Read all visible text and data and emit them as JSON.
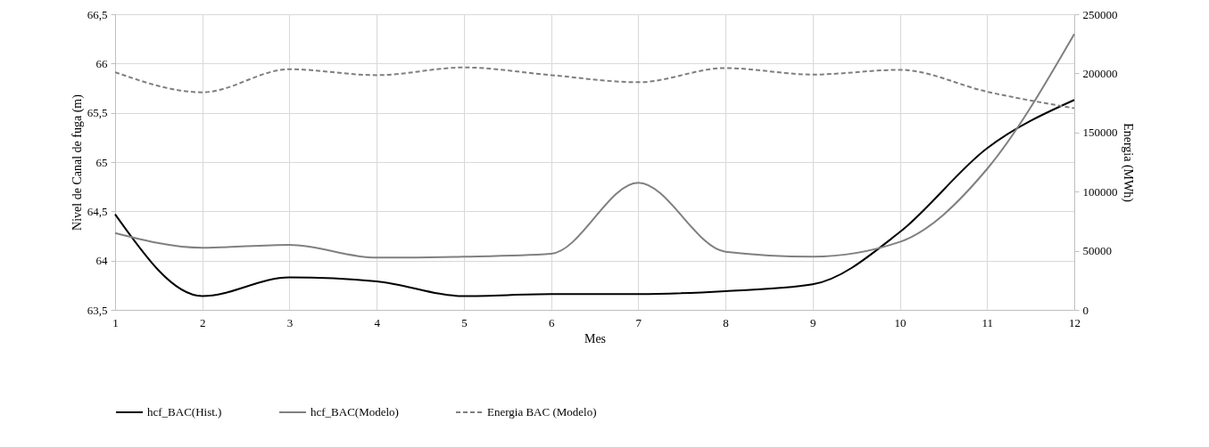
{
  "chart_data": {
    "type": "line",
    "xlabel": "Mes",
    "ylabel": "Nivel de Canal de fuga (m)",
    "y2label": "Energia (MWh)",
    "x": [
      1,
      2,
      3,
      4,
      5,
      6,
      7,
      8,
      9,
      10,
      11,
      12
    ],
    "xlim": [
      1,
      12
    ],
    "xticks": [
      1,
      2,
      3,
      4,
      5,
      6,
      7,
      8,
      9,
      10,
      11,
      12
    ],
    "ylim": [
      63.5,
      66.5
    ],
    "yticks": [
      {
        "value": 63.5,
        "label": "63,5"
      },
      64,
      {
        "value": 64.5,
        "label": "64,5"
      },
      65,
      {
        "value": 65.5,
        "label": "65,5"
      },
      66,
      {
        "value": 66.5,
        "label": "66,5"
      }
    ],
    "y2lim": [
      0,
      250000
    ],
    "y2ticks": [
      0,
      50000,
      100000,
      150000,
      200000,
      250000
    ],
    "grid": true,
    "legend": "bottom",
    "marker": "none",
    "series": [
      {
        "name": "hcf_BAC(Hist.)",
        "color": "#000000",
        "line_style": "solid",
        "values": [
          64.47,
          63.64,
          63.83,
          63.79,
          63.64,
          63.66,
          63.66,
          63.69,
          63.76,
          64.29,
          65.14,
          65.63
        ]
      },
      {
        "name": "hcf_BAC(Modelo)",
        "color": "#808080",
        "line_style": "solid",
        "values": [
          64.28,
          64.13,
          64.16,
          64.03,
          64.04,
          64.07,
          64.79,
          64.09,
          64.04,
          64.19,
          64.93,
          66.3
        ]
      },
      {
        "name": "Energia BAC (Modelo)",
        "color": "#7f7f7f",
        "line_style": "dashed",
        "axis": "y2",
        "values": [
          201000,
          184000,
          203500,
          198500,
          205000,
          198500,
          192500,
          204500,
          199000,
          203000,
          184500,
          170500
        ]
      }
    ]
  }
}
